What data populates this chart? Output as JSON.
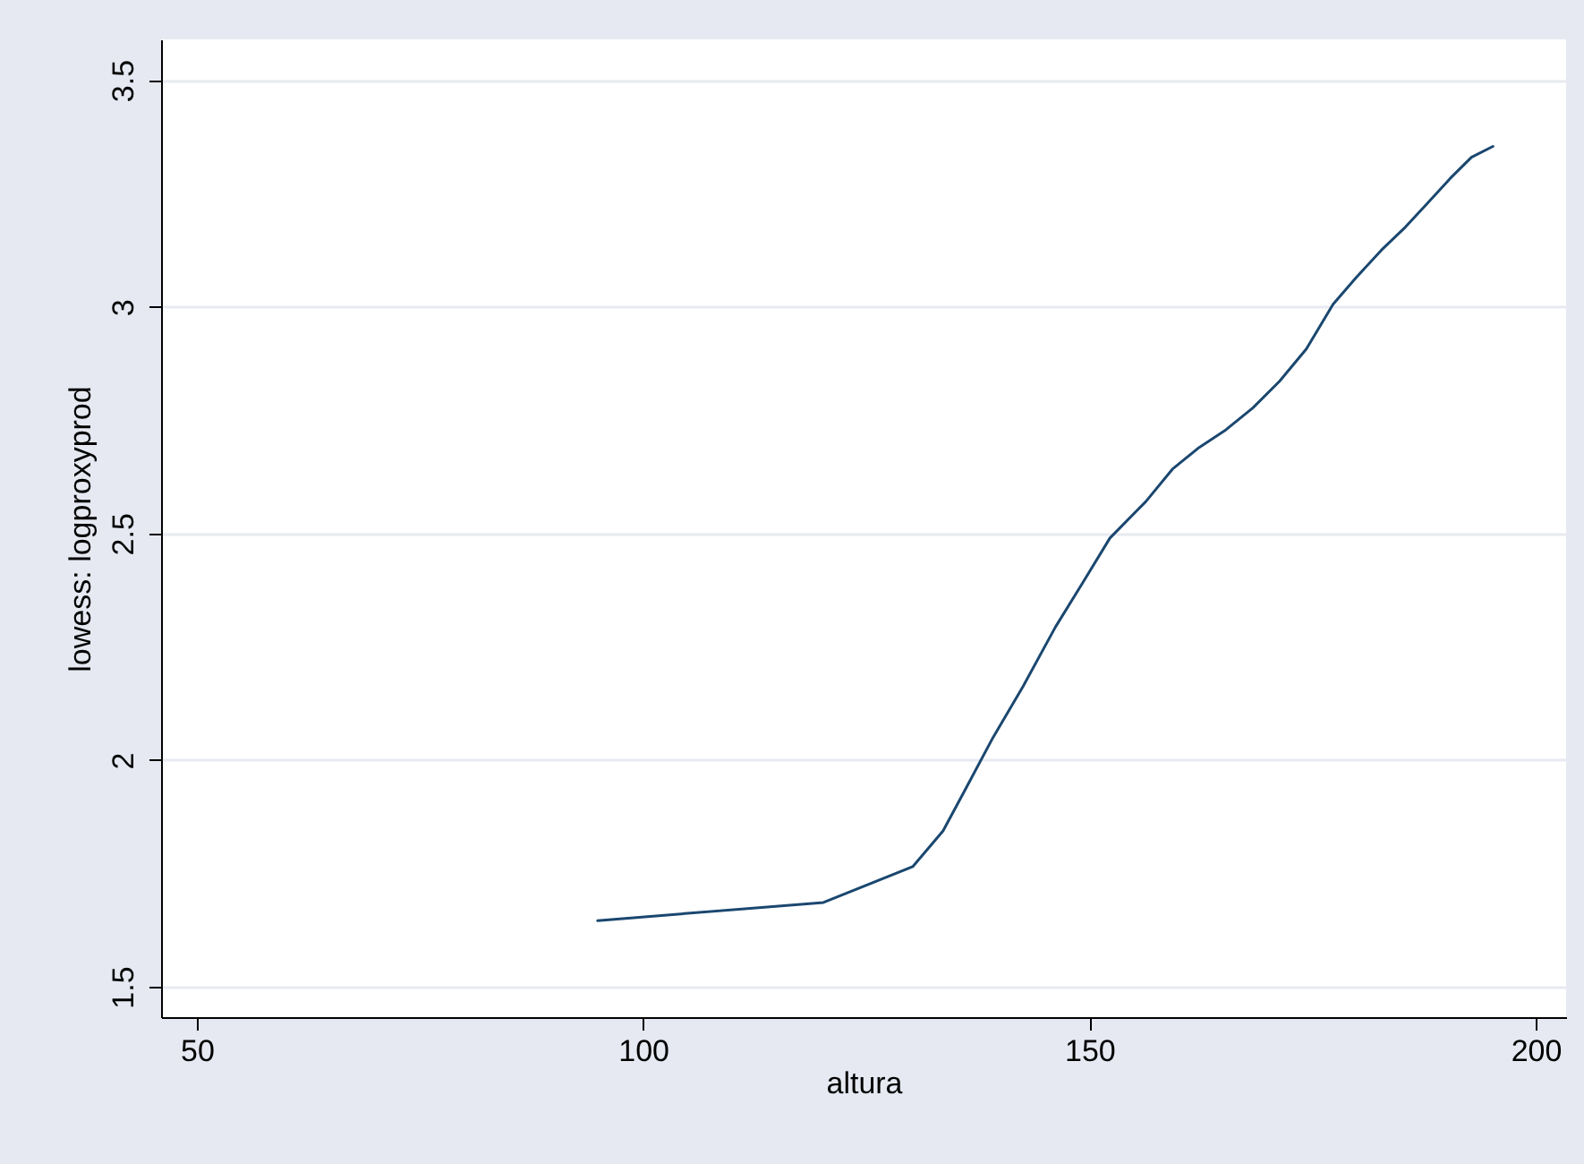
{
  "chart_data": {
    "type": "line",
    "xlabel": "altura",
    "ylabel": "lowess: logproxyprod",
    "x": [
      94.9,
      120.2,
      130.2,
      133.6,
      136.2,
      139.2,
      142.6,
      146.2,
      149.3,
      152.3,
      156.3,
      159.3,
      162.3,
      165.3,
      168.3,
      171.3,
      174.3,
      177.3,
      179.9,
      182.7,
      185.4,
      187.8,
      190.4,
      192.8,
      195.2
    ],
    "series": [
      {
        "color": "#1a476f",
        "values": [
          1.646,
          1.686,
          1.765,
          1.844,
          1.939,
          2.05,
          2.164,
          2.294,
          2.393,
          2.49,
          2.57,
          2.642,
          2.69,
          2.729,
          2.777,
          2.836,
          2.907,
          3.006,
          3.065,
          3.125,
          3.176,
          3.227,
          3.283,
          3.33,
          3.354
        ]
      }
    ],
    "xlim": [
      46,
      203.4
    ],
    "ylim": [
      1.433,
      3.59
    ],
    "xticks": [
      50,
      100,
      150,
      200
    ],
    "yticks": [
      1.5,
      2,
      2.5,
      3,
      3.5
    ],
    "grid": "y",
    "marker": "none",
    "line_style": "solid"
  }
}
